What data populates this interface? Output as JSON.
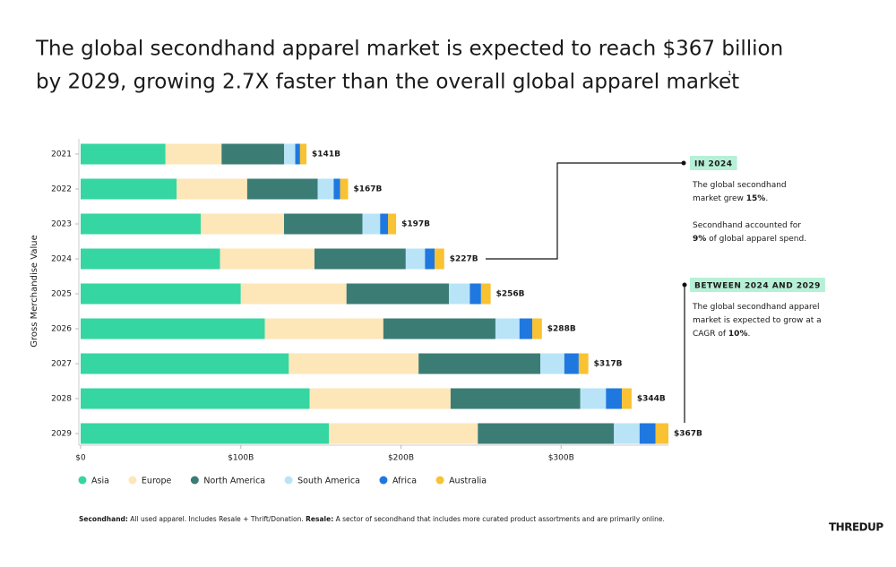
{
  "chart_data": {
    "type": "stacked_barh",
    "title_lines": [
      "The global secondhand apparel market is expected to reach $367 billion",
      "by 2029, growing 2.7X faster than the overall global apparel market"
    ],
    "title_note": "1",
    "y_label": "Gross Merchandise Value",
    "categories": [
      "2021",
      "2022",
      "2023",
      "2024",
      "2025",
      "2026",
      "2027",
      "2028",
      "2029"
    ],
    "series": [
      {
        "name": "Asia",
        "color": "#35d6a2",
        "values": [
          53,
          60,
          75,
          87,
          100,
          115,
          130,
          143,
          155
        ]
      },
      {
        "name": "Europe",
        "color": "#fde6b8",
        "values": [
          35,
          44,
          52,
          59,
          66,
          74,
          81,
          88,
          93
        ]
      },
      {
        "name": "North America",
        "color": "#3b7d75",
        "values": [
          39,
          44,
          49,
          57,
          64,
          70,
          76,
          81,
          85
        ]
      },
      {
        "name": "South America",
        "color": "#b9e4f8",
        "values": [
          7,
          10,
          11,
          12,
          13,
          15,
          15,
          16,
          16
        ]
      },
      {
        "name": "Africa",
        "color": "#1f78e0",
        "values": [
          3,
          4,
          5,
          6,
          7,
          8,
          9,
          10,
          10
        ]
      },
      {
        "name": "Australia",
        "color": "#f8c232",
        "values": [
          4,
          5,
          5,
          6,
          6,
          6,
          6,
          6,
          8
        ]
      }
    ],
    "totals": {
      "values": [
        141,
        167,
        197,
        227,
        256,
        288,
        317,
        344,
        367
      ],
      "value_labels": [
        "$141B",
        "$167B",
        "$197B",
        "$227B",
        "$256B",
        "$288B",
        "$317B",
        "$344B",
        "$367B"
      ]
    },
    "xlim": [
      0,
      367
    ],
    "xticks": [
      {
        "value": 0,
        "label": "$0"
      },
      {
        "value": 100,
        "label": "$100B"
      },
      {
        "value": 200,
        "label": "$200B"
      },
      {
        "value": 300,
        "label": "$300B"
      }
    ],
    "annotations": [
      {
        "heading": "IN 2024",
        "lines": [
          [
            {
              "text": "The global secondhand"
            }
          ],
          [
            {
              "text": "market grew "
            },
            {
              "text": "15%",
              "bold": true
            },
            {
              "text": "."
            }
          ],
          [],
          [
            {
              "text": "Secondhand accounted for"
            }
          ],
          [
            {
              "text": "9%",
              "bold": true
            },
            {
              "text": " of global apparel spend."
            }
          ]
        ]
      },
      {
        "heading": "BETWEEN 2024 AND 2029",
        "lines": [
          [
            {
              "text": "The global secondhand apparel"
            }
          ],
          [
            {
              "text": "market is expected to grow at a"
            }
          ],
          [
            {
              "text": "CAGR of "
            },
            {
              "text": "10%",
              "bold": true
            },
            {
              "text": "."
            }
          ]
        ]
      }
    ],
    "footnote": [
      {
        "text": "Secondhand:",
        "bold": true
      },
      {
        "text": " All used apparel. Includes Resale + Thrift/Donation.      "
      },
      {
        "text": "Resale:",
        "bold": true
      },
      {
        "text": " A sector of secondhand that includes more curated product assortments and are primarily online."
      }
    ],
    "logo": "THREDUP"
  }
}
